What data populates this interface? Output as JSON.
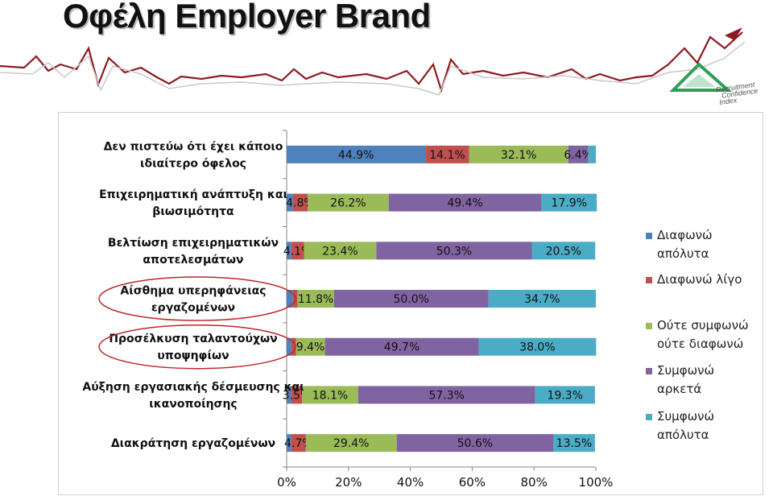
{
  "page": {
    "title": "Οφέλη Employer Brand",
    "logo_lines": [
      "Recruitment",
      "Confidence",
      "Index"
    ]
  },
  "chart_data": {
    "type": "bar",
    "orientation": "horizontal",
    "stacked": "percent",
    "categories": [
      [
        "Δεν πιστεύω ότι έχει κάποιο",
        "ιδιαίτερο όφελος"
      ],
      [
        "Επιχειρηματική ανάπτυξη και",
        "βιωσιμότητα"
      ],
      [
        "Βελτίωση επιχειρηματικών",
        "αποτελεσμάτων"
      ],
      [
        "Αίσθημα υπερηφάνειας",
        "εργαζομένων"
      ],
      [
        "Προσέλκυση ταλαντούχων",
        "υποψηφίων"
      ],
      [
        "Αύξηση εργασιακής δέσμευσης και",
        "ικανοποίησης"
      ],
      [
        "Διακράτηση εργαζομένων"
      ]
    ],
    "series": [
      {
        "name": [
          "Διαφωνώ",
          "απόλυτα"
        ],
        "color": "#4f81bd",
        "values": [
          44.9,
          2.0,
          1.5,
          2.0,
          1.5,
          1.5,
          1.5
        ],
        "labels": [
          "44.9%",
          "",
          "",
          "",
          "",
          "",
          ""
        ]
      },
      {
        "name": [
          "Διαφωνώ λίγο"
        ],
        "color": "#c0504d",
        "values": [
          14.1,
          4.8,
          4.1,
          1.5,
          1.5,
          3.5,
          4.7
        ],
        "labels": [
          "14.1%",
          "4.8%",
          "4.1%",
          "",
          "",
          "3.5%",
          "4.7%"
        ]
      },
      {
        "name": [
          "Ούτε συμφωνώ",
          "ούτε διαφωνώ"
        ],
        "color": "#9bbb59",
        "values": [
          32.1,
          26.2,
          23.4,
          11.8,
          9.4,
          18.1,
          29.4
        ],
        "labels": [
          "32.1%",
          "26.2%",
          "23.4%",
          "11.8%",
          "9.4%",
          "18.1%",
          "29.4%"
        ]
      },
      {
        "name": [
          "Συμφωνώ",
          "αρκετά"
        ],
        "color": "#8064a2",
        "values": [
          6.4,
          49.4,
          50.3,
          50.0,
          49.7,
          57.3,
          50.6
        ],
        "labels": [
          "6.4%",
          "49.4%",
          "50.3%",
          "50.0%",
          "49.7%",
          "57.3%",
          "50.6%"
        ]
      },
      {
        "name": [
          "Συμφωνώ",
          "απόλυτα"
        ],
        "color": "#4bacc6",
        "values": [
          2.5,
          17.9,
          20.5,
          34.7,
          38.0,
          19.3,
          13.5
        ],
        "labels": [
          "",
          "17.9%",
          "20.5%",
          "34.7%",
          "38.0%",
          "19.3%",
          "13.5%"
        ]
      }
    ],
    "xlim": [
      0,
      100
    ],
    "xticks": [
      "0%",
      "20%",
      "40%",
      "60%",
      "80%",
      "100%"
    ],
    "legend_position": "right",
    "highlighted_categories": [
      3,
      4
    ]
  }
}
